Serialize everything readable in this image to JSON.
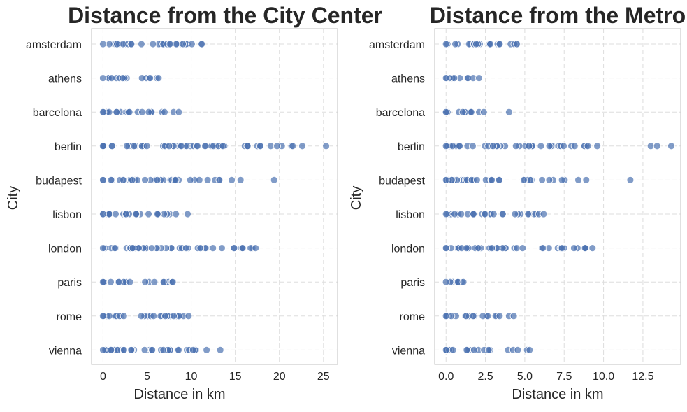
{
  "chart_data": [
    {
      "type": "scatter",
      "title": "Distance from the City Center",
      "xlabel": "Distance in km",
      "ylabel": "City",
      "xlim": [
        -1.3,
        26.6
      ],
      "xticks": [
        "0",
        "5",
        "10",
        "15",
        "20",
        "25"
      ],
      "categories": [
        "amsterdam",
        "athens",
        "barcelona",
        "berlin",
        "budapest",
        "lisbon",
        "london",
        "paris",
        "rome",
        "vienna"
      ],
      "grid": true,
      "ranges": [
        {
          "min": 0.0,
          "max": 11.2,
          "outliers": []
        },
        {
          "min": 0.0,
          "max": 6.3,
          "outliers": []
        },
        {
          "min": 0.0,
          "max": 8.6,
          "outliers": []
        },
        {
          "min": 0.0,
          "max": 21.5,
          "outliers": [
            22.6,
            25.3
          ]
        },
        {
          "min": 0.0,
          "max": 13.2,
          "outliers": [
            14.6,
            15.6,
            19.4
          ]
        },
        {
          "min": 0.0,
          "max": 9.6,
          "outliers": []
        },
        {
          "min": 0.0,
          "max": 17.3,
          "outliers": []
        },
        {
          "min": 0.0,
          "max": 7.9,
          "outliers": []
        },
        {
          "min": 0.0,
          "max": 9.7,
          "outliers": []
        },
        {
          "min": 0.0,
          "max": 13.3,
          "outliers": []
        }
      ]
    },
    {
      "type": "scatter",
      "title": "Distance from the Metro",
      "xlabel": "Distance in km",
      "ylabel": "City",
      "xlim": [
        -0.72,
        14.9
      ],
      "xticks": [
        "0.0",
        "2.5",
        "5.0",
        "7.5",
        "10.0",
        "12.5"
      ],
      "categories": [
        "amsterdam",
        "athens",
        "barcelona",
        "berlin",
        "budapest",
        "lisbon",
        "london",
        "paris",
        "rome",
        "vienna"
      ],
      "grid": true,
      "ranges": [
        {
          "min": 0.0,
          "max": 4.5,
          "outliers": []
        },
        {
          "min": 0.0,
          "max": 2.1,
          "outliers": []
        },
        {
          "min": 0.0,
          "max": 1.6,
          "outliers": [
            2.1,
            2.4,
            4.0
          ]
        },
        {
          "min": 0.0,
          "max": 9.0,
          "outliers": [
            9.6,
            13.0,
            13.4,
            14.3
          ]
        },
        {
          "min": 0.0,
          "max": 8.4,
          "outliers": [
            8.9,
            11.7
          ]
        },
        {
          "min": 0.0,
          "max": 6.2,
          "outliers": []
        },
        {
          "min": 0.0,
          "max": 9.3,
          "outliers": []
        },
        {
          "min": 0.0,
          "max": 1.1,
          "outliers": []
        },
        {
          "min": 0.0,
          "max": 3.4,
          "outliers": [
            4.0,
            4.3
          ]
        },
        {
          "min": 0.0,
          "max": 5.3,
          "outliers": []
        }
      ]
    }
  ],
  "colors": {
    "marker": "#4c72b0",
    "marker_edge": "#ffffff",
    "grid": "#dddddd",
    "frame": "#cccccc",
    "text": "#262626"
  }
}
